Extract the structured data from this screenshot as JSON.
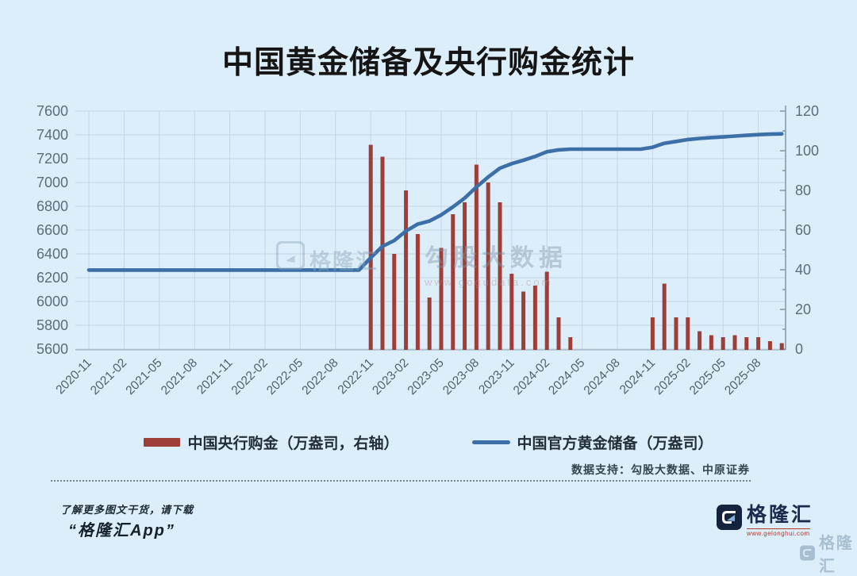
{
  "title": "中国黄金储备及央行购金统计",
  "watermark": {
    "brand": "格隆汇",
    "name": "勾股大数据",
    "url": "www.gogudata.com"
  },
  "legend": [
    {
      "label": "中国央行购金（万盎司，右轴）",
      "type": "bar",
      "color": "#9d3e38"
    },
    {
      "label": "中国官方黄金储备（万盎司）",
      "type": "line",
      "color": "#3c6fa8"
    }
  ],
  "footer": {
    "source": "数据支持：勾股大数据、中原证券",
    "promo_line1": "了解更多图文干货，请下载",
    "promo_line2": "“格隆汇App”",
    "brand": "格隆汇",
    "brand_url": "www.gelonghui.com"
  },
  "colors": {
    "background": "#dceefa",
    "grid": "#c3d6e3",
    "bar": "#9d3e38",
    "line": "#3c6fa8",
    "axis_text": "#5d6d78",
    "tick_text": "#50606c",
    "right_axis_line": "#8097a5"
  },
  "chart_data": {
    "type": "bar+line",
    "title": "中国黄金储备及央行购金统计",
    "x": [
      "2020-11",
      "2020-12",
      "2021-01",
      "2021-02",
      "2021-03",
      "2021-04",
      "2021-05",
      "2021-06",
      "2021-07",
      "2021-08",
      "2021-09",
      "2021-10",
      "2021-11",
      "2021-12",
      "2022-01",
      "2022-02",
      "2022-03",
      "2022-04",
      "2022-05",
      "2022-06",
      "2022-07",
      "2022-08",
      "2022-09",
      "2022-10",
      "2022-11",
      "2022-12",
      "2023-01",
      "2023-02",
      "2023-03",
      "2023-04",
      "2023-05",
      "2023-06",
      "2023-07",
      "2023-08",
      "2023-09",
      "2023-10",
      "2023-11",
      "2023-12",
      "2024-01",
      "2024-02",
      "2024-03",
      "2024-04",
      "2024-05",
      "2024-06",
      "2024-07",
      "2024-08",
      "2024-09",
      "2024-10",
      "2024-11",
      "2024-12",
      "2025-01",
      "2025-02",
      "2025-03",
      "2025-04",
      "2025-05",
      "2025-06",
      "2025-07",
      "2025-08",
      "2025-09",
      "2025-10"
    ],
    "x_tick_labels": [
      "2020-11",
      "2021-02",
      "2021-05",
      "2021-08",
      "2021-11",
      "2022-02",
      "2022-05",
      "2022-08",
      "2022-11",
      "2023-02",
      "2023-05",
      "2023-08",
      "2023-11",
      "2024-02",
      "2024-05",
      "2024-08",
      "2024-11",
      "2025-02",
      "2025-05",
      "2025-08"
    ],
    "series": [
      {
        "name": "中国央行购金（万盎司，右轴）",
        "type": "bar",
        "axis": "right",
        "color": "#9d3e38",
        "values": [
          0,
          0,
          0,
          0,
          0,
          0,
          0,
          0,
          0,
          0,
          0,
          0,
          0,
          0,
          0,
          0,
          0,
          0,
          0,
          0,
          0,
          0,
          0,
          0,
          103,
          97,
          48,
          80,
          58,
          26,
          51,
          68,
          74,
          93,
          84,
          74,
          38,
          29,
          32,
          39,
          16,
          6,
          0,
          0,
          0,
          0,
          0,
          0,
          16,
          33,
          16,
          16,
          9,
          7,
          6,
          7,
          6,
          6,
          4,
          3
        ]
      },
      {
        "name": "中国官方黄金储备（万盎司）",
        "type": "line",
        "axis": "left",
        "color": "#3c6fa8",
        "values": [
          6264,
          6264,
          6264,
          6264,
          6264,
          6264,
          6264,
          6264,
          6264,
          6264,
          6264,
          6264,
          6264,
          6264,
          6264,
          6264,
          6264,
          6264,
          6264,
          6264,
          6264,
          6264,
          6264,
          6264,
          6367,
          6464,
          6512,
          6592,
          6650,
          6676,
          6727,
          6795,
          6869,
          6962,
          7046,
          7120,
          7158,
          7187,
          7219,
          7258,
          7274,
          7280,
          7280,
          7280,
          7280,
          7280,
          7280,
          7280,
          7296,
          7329,
          7345,
          7361,
          7370,
          7377,
          7383,
          7390,
          7396,
          7402,
          7406,
          7409
        ]
      }
    ],
    "left_axis": {
      "min": 5600,
      "max": 7600,
      "ticks": [
        7600,
        7400,
        7200,
        7000,
        6800,
        6600,
        6400,
        6200,
        6000,
        5800,
        5600
      ]
    },
    "right_axis": {
      "min": 0,
      "max": 120,
      "ticks": [
        120,
        100,
        80,
        60,
        40,
        20,
        0
      ],
      "minor_step": 10
    },
    "grid": true,
    "legend_position": "bottom"
  }
}
